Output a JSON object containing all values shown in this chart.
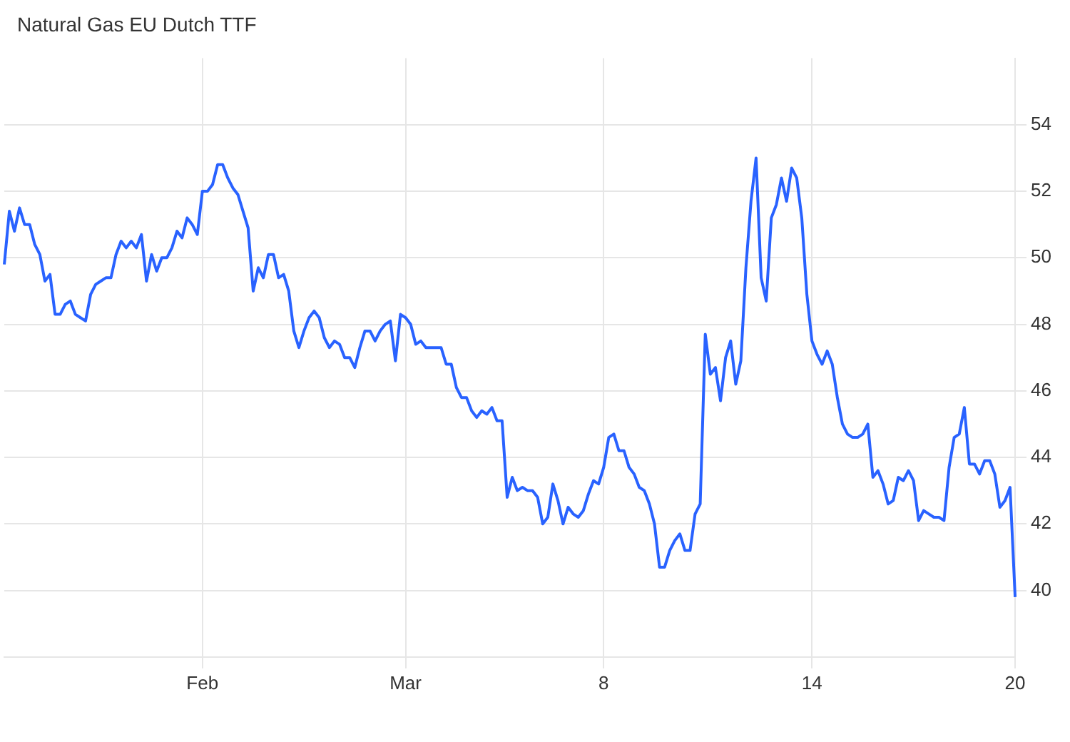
{
  "chart_data": {
    "type": "line",
    "title": "Natural Gas EU Dutch TTF",
    "categories": [
      null,
      null,
      null,
      null,
      null,
      null,
      null,
      null,
      null,
      null,
      null,
      null,
      null,
      null,
      null,
      null,
      null,
      null,
      null,
      null,
      null,
      null,
      null,
      null,
      null,
      null,
      null,
      null,
      null,
      null,
      null,
      null,
      null,
      null,
      null,
      null,
      null,
      null,
      null,
      "Feb",
      null,
      null,
      null,
      null,
      null,
      null,
      null,
      null,
      null,
      null,
      null,
      null,
      null,
      null,
      null,
      null,
      null,
      null,
      null,
      null,
      null,
      null,
      null,
      null,
      null,
      null,
      null,
      null,
      null,
      null,
      null,
      null,
      null,
      null,
      null,
      null,
      null,
      null,
      null,
      "Mar",
      null,
      null,
      null,
      null,
      null,
      null,
      null,
      null,
      null,
      null,
      null,
      null,
      null,
      null,
      null,
      null,
      null,
      null,
      null,
      null,
      null,
      null,
      null,
      null,
      null,
      null,
      null,
      null,
      null,
      null,
      null,
      null,
      null,
      null,
      null,
      null,
      null,
      null,
      "8",
      null,
      null,
      null,
      null,
      null,
      null,
      null,
      null,
      null,
      null,
      null,
      null,
      null,
      null,
      null,
      null,
      null,
      null,
      null,
      null,
      null,
      null,
      null,
      null,
      null,
      null,
      null,
      null,
      null,
      null,
      null,
      null,
      null,
      null,
      null,
      null,
      null,
      null,
      null,
      null,
      "14",
      null,
      null,
      null,
      null,
      null,
      null,
      null,
      null,
      null,
      null,
      null,
      null,
      null,
      null,
      null,
      null,
      null,
      null,
      null,
      null,
      null,
      null,
      null,
      null,
      null,
      null,
      null,
      null,
      null,
      null,
      null,
      null,
      null,
      null,
      null,
      null,
      null,
      null,
      null,
      "20"
    ],
    "values": [
      49.8,
      51.4,
      50.8,
      51.5,
      51.0,
      51.0,
      50.4,
      50.1,
      49.3,
      49.5,
      48.3,
      48.3,
      48.6,
      48.7,
      48.3,
      48.2,
      48.1,
      48.9,
      49.2,
      49.3,
      49.4,
      49.4,
      50.1,
      50.5,
      50.3,
      50.5,
      50.3,
      50.7,
      49.3,
      50.1,
      49.6,
      50.0,
      50.0,
      50.3,
      50.8,
      50.6,
      51.2,
      51.0,
      50.7,
      52.0,
      52.0,
      52.2,
      52.8,
      52.8,
      52.4,
      52.1,
      51.9,
      51.4,
      50.9,
      49.0,
      49.7,
      49.4,
      50.1,
      50.1,
      49.4,
      49.5,
      49.0,
      47.8,
      47.3,
      47.8,
      48.2,
      48.4,
      48.2,
      47.6,
      47.3,
      47.5,
      47.4,
      47.0,
      47.0,
      46.7,
      47.3,
      47.8,
      47.8,
      47.5,
      47.8,
      48.0,
      48.1,
      46.9,
      48.3,
      48.2,
      48.0,
      47.4,
      47.5,
      47.3,
      47.3,
      47.3,
      47.3,
      46.8,
      46.8,
      46.1,
      45.8,
      45.8,
      45.4,
      45.2,
      45.4,
      45.3,
      45.5,
      45.1,
      45.1,
      42.8,
      43.4,
      43.0,
      43.1,
      43.0,
      43.0,
      42.8,
      42.0,
      42.2,
      43.2,
      42.7,
      42.0,
      42.5,
      42.3,
      42.2,
      42.4,
      42.9,
      43.3,
      43.2,
      43.7,
      44.6,
      44.7,
      44.2,
      44.2,
      43.7,
      43.5,
      43.1,
      43.0,
      42.6,
      42.0,
      40.7,
      40.7,
      41.2,
      41.5,
      41.7,
      41.2,
      41.2,
      42.3,
      42.6,
      47.7,
      46.5,
      46.7,
      45.7,
      47.0,
      47.5,
      46.2,
      46.9,
      49.7,
      51.7,
      53.0,
      49.4,
      48.7,
      51.2,
      51.6,
      52.4,
      51.7,
      52.7,
      52.4,
      51.2,
      48.9,
      47.5,
      47.1,
      46.8,
      47.2,
      46.8,
      45.8,
      45.0,
      44.7,
      44.6,
      44.6,
      44.7,
      45.0,
      43.4,
      43.6,
      43.2,
      42.6,
      42.7,
      43.4,
      43.3,
      43.6,
      43.3,
      42.1,
      42.4,
      42.3,
      42.2,
      42.2,
      42.1,
      43.7,
      44.6,
      44.7,
      45.5,
      43.8,
      43.8,
      43.5,
      43.9,
      43.9,
      43.5,
      42.5,
      42.7,
      43.1,
      39.8
    ],
    "color": "#2962ff",
    "ylim": [
      38,
      56
    ],
    "yticks": [
      40,
      42,
      44,
      46,
      48,
      50,
      52,
      54
    ],
    "grid": true,
    "legend": false,
    "marker": "none",
    "line_style": "solid"
  }
}
